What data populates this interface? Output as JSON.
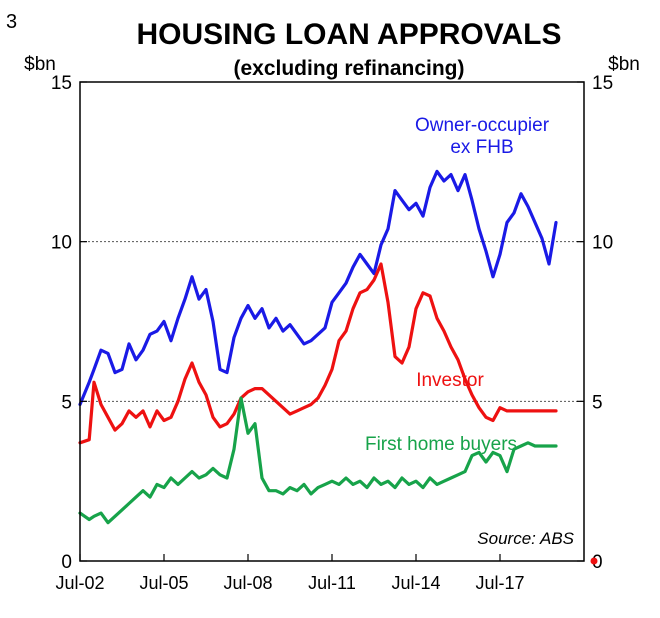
{
  "chart_data": {
    "type": "line",
    "figure_number": "3",
    "title": "HOUSING LOAN APPROVALS",
    "subtitle": "(excluding refinancing)",
    "ylabel_left": "$bn",
    "ylabel_right": "$bn",
    "ylim": [
      0,
      15
    ],
    "yticks": [
      0,
      5,
      10,
      15
    ],
    "xlim": [
      2002.5,
      2020.5
    ],
    "xticks": [
      {
        "x": 2002.5,
        "label": "Jul-02"
      },
      {
        "x": 2005.5,
        "label": "Jul-05"
      },
      {
        "x": 2008.5,
        "label": "Jul-08"
      },
      {
        "x": 2011.5,
        "label": "Jul-11"
      },
      {
        "x": 2014.5,
        "label": "Jul-14"
      },
      {
        "x": 2017.5,
        "label": "Jul-17"
      }
    ],
    "gridlines_y": [
      5,
      10
    ],
    "grid_style": "dotted",
    "source": "Source: ABS",
    "series": [
      {
        "name": "Owner-occupier ex FHB",
        "label_lines": [
          "Owner-occupier",
          "ex FHB"
        ],
        "color": "#1a1ae6",
        "x": [
          2002.5,
          2002.83,
          2003.0,
          2003.25,
          2003.5,
          2003.75,
          2004.0,
          2004.25,
          2004.5,
          2004.75,
          2005.0,
          2005.25,
          2005.5,
          2005.75,
          2006.0,
          2006.25,
          2006.5,
          2006.75,
          2007.0,
          2007.25,
          2007.5,
          2007.75,
          2008.0,
          2008.25,
          2008.5,
          2008.75,
          2009.0,
          2009.25,
          2009.5,
          2009.75,
          2010.0,
          2010.25,
          2010.5,
          2010.75,
          2011.0,
          2011.25,
          2011.5,
          2011.75,
          2012.0,
          2012.25,
          2012.5,
          2012.75,
          2013.0,
          2013.25,
          2013.5,
          2013.75,
          2014.0,
          2014.25,
          2014.5,
          2014.75,
          2015.0,
          2015.25,
          2015.5,
          2015.75,
          2016.0,
          2016.25,
          2016.5,
          2016.75,
          2017.0,
          2017.25,
          2017.5,
          2017.75,
          2018.0,
          2018.25,
          2018.5,
          2018.75,
          2019.0,
          2019.25,
          2019.5
        ],
        "values": [
          4.9,
          5.6,
          6.0,
          6.6,
          6.5,
          5.9,
          6.0,
          6.8,
          6.3,
          6.6,
          7.1,
          7.2,
          7.5,
          6.9,
          7.6,
          8.2,
          8.9,
          8.2,
          8.5,
          7.5,
          6.0,
          5.9,
          7.0,
          7.6,
          8.0,
          7.6,
          7.9,
          7.3,
          7.6,
          7.2,
          7.4,
          7.1,
          6.8,
          6.9,
          7.1,
          7.3,
          8.1,
          8.4,
          8.7,
          9.2,
          9.6,
          9.3,
          9.0,
          9.9,
          10.4,
          11.6,
          11.3,
          11.0,
          11.2,
          10.8,
          11.7,
          12.2,
          11.9,
          12.1,
          11.6,
          12.1,
          11.3,
          10.4,
          9.7,
          8.9,
          9.6,
          10.6,
          10.9,
          11.5,
          11.1,
          10.6,
          10.1,
          9.3,
          10.6
        ]
      },
      {
        "name": "Investor",
        "label_lines": [
          "Investor"
        ],
        "color": "#ee1111",
        "x": [
          2002.5,
          2002.83,
          2003.0,
          2003.25,
          2003.5,
          2003.75,
          2004.0,
          2004.25,
          2004.5,
          2004.75,
          2005.0,
          2005.25,
          2005.5,
          2005.75,
          2006.0,
          2006.25,
          2006.5,
          2006.75,
          2007.0,
          2007.25,
          2007.5,
          2007.75,
          2008.0,
          2008.25,
          2008.5,
          2008.75,
          2009.0,
          2009.25,
          2009.5,
          2009.75,
          2010.0,
          2010.25,
          2010.5,
          2010.75,
          2011.0,
          2011.25,
          2011.5,
          2011.75,
          2012.0,
          2012.25,
          2012.5,
          2012.75,
          2013.0,
          2013.25,
          2013.5,
          2013.75,
          2014.0,
          2014.25,
          2014.5,
          2014.75,
          2015.0,
          2015.25,
          2015.5,
          2015.75,
          2016.0,
          2016.25,
          2016.5,
          2016.75,
          2017.0,
          2017.25,
          2017.5,
          2017.75,
          2018.0,
          2018.25,
          2018.5,
          2018.75,
          2019.0,
          2019.25,
          2019.5
        ],
        "values": [
          3.7,
          3.8,
          5.6,
          4.9,
          4.5,
          4.1,
          4.3,
          4.7,
          4.5,
          4.7,
          4.2,
          4.7,
          4.4,
          4.5,
          5.0,
          5.7,
          6.2,
          5.6,
          5.2,
          4.5,
          4.2,
          4.3,
          4.6,
          5.1,
          5.3,
          5.4,
          5.4,
          5.2,
          5.0,
          4.8,
          4.6,
          4.7,
          4.8,
          4.9,
          5.1,
          5.5,
          6.0,
          6.9,
          7.2,
          7.9,
          8.4,
          8.5,
          8.8,
          9.3,
          8.1,
          6.4,
          6.2,
          6.7,
          7.9,
          8.4,
          8.3,
          7.6,
          7.2,
          6.7,
          6.3,
          5.7,
          5.2,
          4.8,
          4.5,
          4.4,
          4.8,
          4.7,
          4.7,
          4.7,
          4.7,
          4.7,
          4.7,
          4.7,
          4.7
        ]
      },
      {
        "name": "First home buyers",
        "label_lines": [
          "First home buyers"
        ],
        "color": "#17a34a",
        "x": [
          2002.5,
          2002.83,
          2003.0,
          2003.25,
          2003.5,
          2003.75,
          2004.0,
          2004.25,
          2004.5,
          2004.75,
          2005.0,
          2005.25,
          2005.5,
          2005.75,
          2006.0,
          2006.25,
          2006.5,
          2006.75,
          2007.0,
          2007.25,
          2007.5,
          2007.75,
          2008.0,
          2008.25,
          2008.5,
          2008.75,
          2009.0,
          2009.25,
          2009.5,
          2009.75,
          2010.0,
          2010.25,
          2010.5,
          2010.75,
          2011.0,
          2011.25,
          2011.5,
          2011.75,
          2012.0,
          2012.25,
          2012.5,
          2012.75,
          2013.0,
          2013.25,
          2013.5,
          2013.75,
          2014.0,
          2014.25,
          2014.5,
          2014.75,
          2015.0,
          2015.25,
          2015.5,
          2015.75,
          2016.0,
          2016.25,
          2016.5,
          2016.75,
          2017.0,
          2017.25,
          2017.5,
          2017.75,
          2018.0,
          2018.25,
          2018.5,
          2018.75,
          2019.0,
          2019.25,
          2019.5
        ],
        "values": [
          1.5,
          1.3,
          1.4,
          1.5,
          1.2,
          1.4,
          1.6,
          1.8,
          2.0,
          2.2,
          2.0,
          2.4,
          2.3,
          2.6,
          2.4,
          2.6,
          2.8,
          2.6,
          2.7,
          2.9,
          2.7,
          2.6,
          3.5,
          5.1,
          4.0,
          4.3,
          2.6,
          2.2,
          2.2,
          2.1,
          2.3,
          2.2,
          2.4,
          2.1,
          2.3,
          2.4,
          2.5,
          2.4,
          2.6,
          2.4,
          2.5,
          2.3,
          2.6,
          2.4,
          2.5,
          2.3,
          2.6,
          2.4,
          2.5,
          2.3,
          2.6,
          2.4,
          2.5,
          2.6,
          2.7,
          2.8,
          3.3,
          3.4,
          3.1,
          3.4,
          3.3,
          2.8,
          3.5,
          3.6,
          3.7,
          3.6,
          3.6,
          3.6,
          3.6
        ]
      }
    ]
  }
}
